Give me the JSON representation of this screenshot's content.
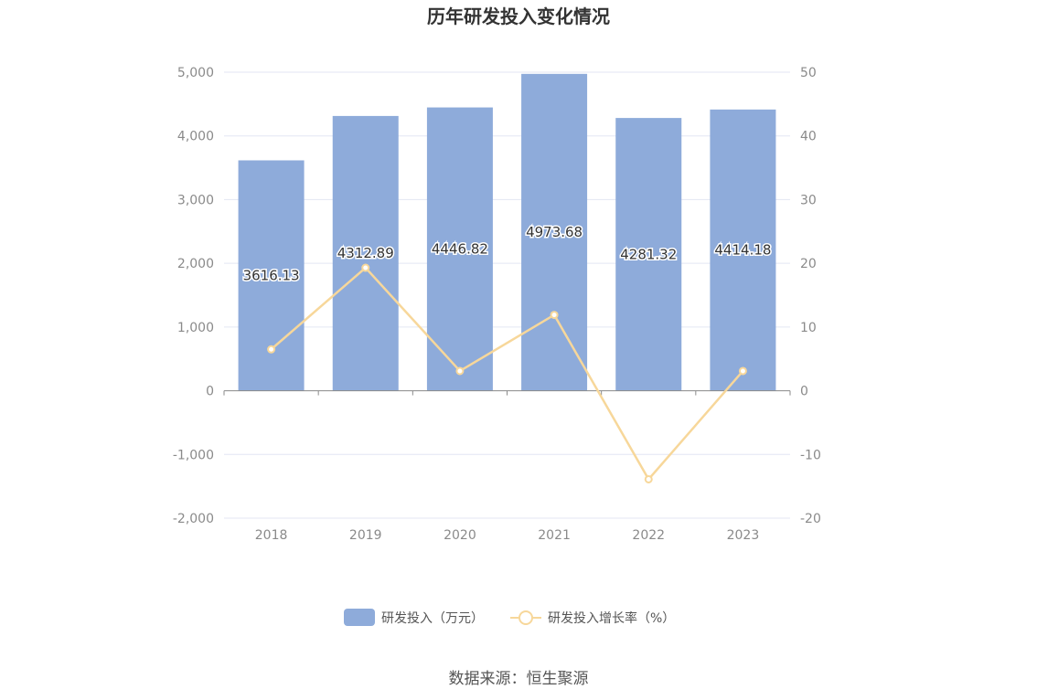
{
  "title": "历年研发投入变化情况",
  "source": "数据来源：恒生聚源",
  "colors": {
    "bar": "#8eabda",
    "line": "#f7d79a",
    "grid": "#e3e6f3",
    "axis": "#8a8a8a"
  },
  "chart_data": {
    "type": "bar",
    "categories": [
      "2018",
      "2019",
      "2020",
      "2021",
      "2022",
      "2023"
    ],
    "series": [
      {
        "name": "研发投入（万元）",
        "type": "bar",
        "axis": "left",
        "values": [
          3616.13,
          4312.89,
          4446.82,
          4973.68,
          4281.32,
          4414.18
        ],
        "labels": [
          "3616.13",
          "4312.89",
          "4446.82",
          "4973.68",
          "4281.32",
          "4414.18"
        ]
      },
      {
        "name": "研发投入增长率（%）",
        "type": "line",
        "axis": "right",
        "values": [
          6.5,
          19.3,
          3.1,
          11.9,
          -13.9,
          3.1
        ]
      }
    ],
    "y_left": {
      "min": -2000,
      "max": 5000,
      "step": 1000,
      "ticks": [
        "-2,000",
        "-1,000",
        "0",
        "1,000",
        "2,000",
        "3,000",
        "4,000",
        "5,000"
      ]
    },
    "y_right": {
      "min": -20,
      "max": 50,
      "step": 10,
      "ticks": [
        "-20",
        "-10",
        "0",
        "10",
        "20",
        "30",
        "40",
        "50"
      ]
    },
    "grid": true,
    "legend_position": "bottom"
  }
}
